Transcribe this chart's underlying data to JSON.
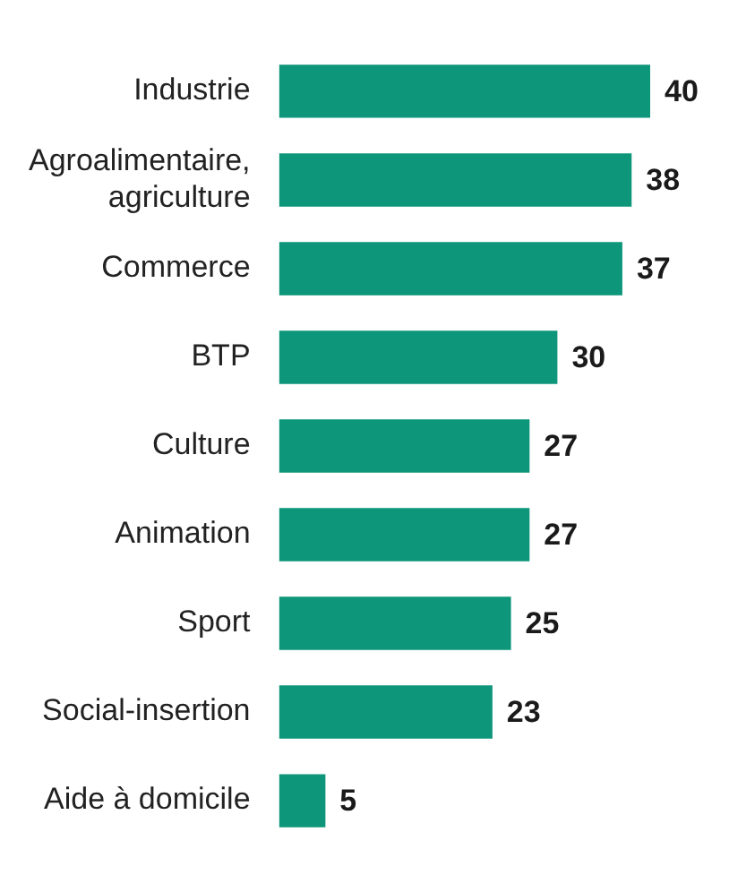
{
  "chart_data": {
    "type": "bar",
    "orientation": "horizontal",
    "categories": [
      "Industrie",
      "Agroalimentaire, agriculture",
      "Commerce",
      "BTP",
      "Culture",
      "Animation",
      "Sport",
      "Social-insertion",
      "Aide à domicile"
    ],
    "values": [
      40,
      38,
      37,
      30,
      27,
      27,
      25,
      23,
      5
    ],
    "color": "#0e967a",
    "data_labels": true
  }
}
